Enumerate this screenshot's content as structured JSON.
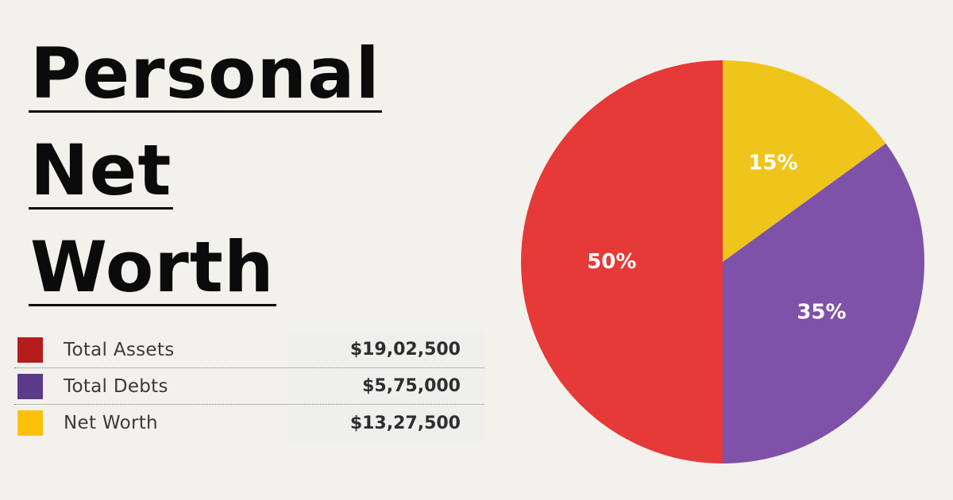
{
  "title": {
    "lines": [
      "Personal",
      "Net",
      "Worth"
    ]
  },
  "legend": [
    {
      "label": "Total Assets",
      "value": "$19,02,500",
      "color": "#b71c1c"
    },
    {
      "label": "Total Debts",
      "value": "$5,75,000",
      "color": "#5c3a8a"
    },
    {
      "label": "Net Worth",
      "value": "$13,27,500",
      "color": "#ffc107"
    }
  ],
  "chart_data": {
    "type": "pie",
    "start_angle_deg": 0,
    "direction": "clockwise",
    "slices": [
      {
        "name": "Net Worth",
        "value": 15,
        "label": "15%",
        "color": "#efc51c"
      },
      {
        "name": "Total Debts",
        "value": 35,
        "label": "35%",
        "color": "#7e52a8"
      },
      {
        "name": "Total Assets",
        "value": 50,
        "label": "50%",
        "color": "#e53a38"
      }
    ]
  }
}
